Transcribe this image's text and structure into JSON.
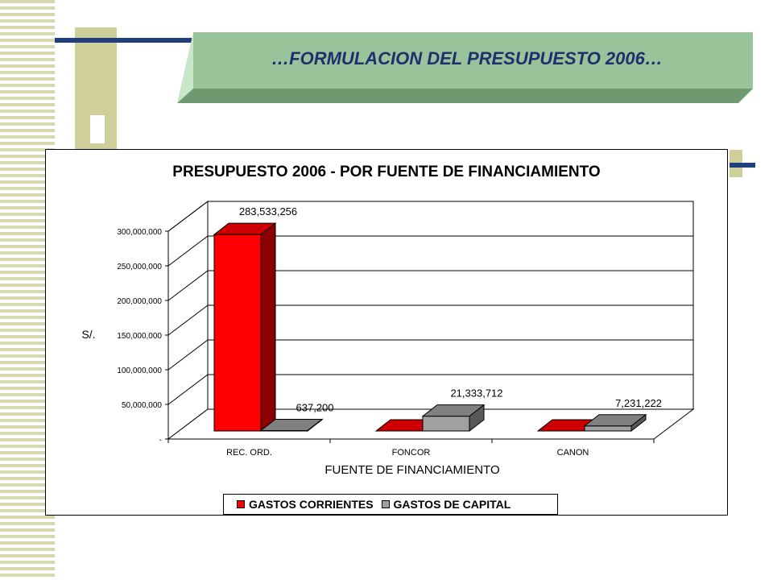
{
  "slide": {
    "title": "…FORMULACION DEL PRESUPUESTO 2006…"
  },
  "colors": {
    "banner_face": "#99c399",
    "banner_dark": "#6f9a6f",
    "banner_light": "#c8e6c8",
    "series1": "#ff0000",
    "series2": "#a0a0a0"
  },
  "chart_data": {
    "type": "bar",
    "title": "PRESUPUESTO 2006 - POR FUENTE DE FINANCIAMIENTO",
    "xlabel": "FUENTE DE FINANCIAMIENTO",
    "ylabel": "S/.",
    "categories": [
      "REC. ORD.",
      "FONCOR",
      "CANON"
    ],
    "series": [
      {
        "name": "GASTOS CORRIENTES",
        "color": "#ff0000",
        "values": [
          283533256,
          0,
          0
        ],
        "labels": [
          "283,533,256",
          "",
          ""
        ]
      },
      {
        "name": "GASTOS DE CAPITAL",
        "color": "#a0a0a0",
        "values": [
          637200,
          21333712,
          7231222
        ],
        "labels": [
          "637,200",
          "21,333,712",
          "7,231,222"
        ]
      }
    ],
    "ylim": [
      0,
      300000000
    ],
    "yticks": [
      "-",
      "50,000,000",
      "100,000,000",
      "150,000,000",
      "200,000,000",
      "250,000,000",
      "300,000,000"
    ],
    "grid": true,
    "three_d": true,
    "legend_position": "bottom"
  }
}
